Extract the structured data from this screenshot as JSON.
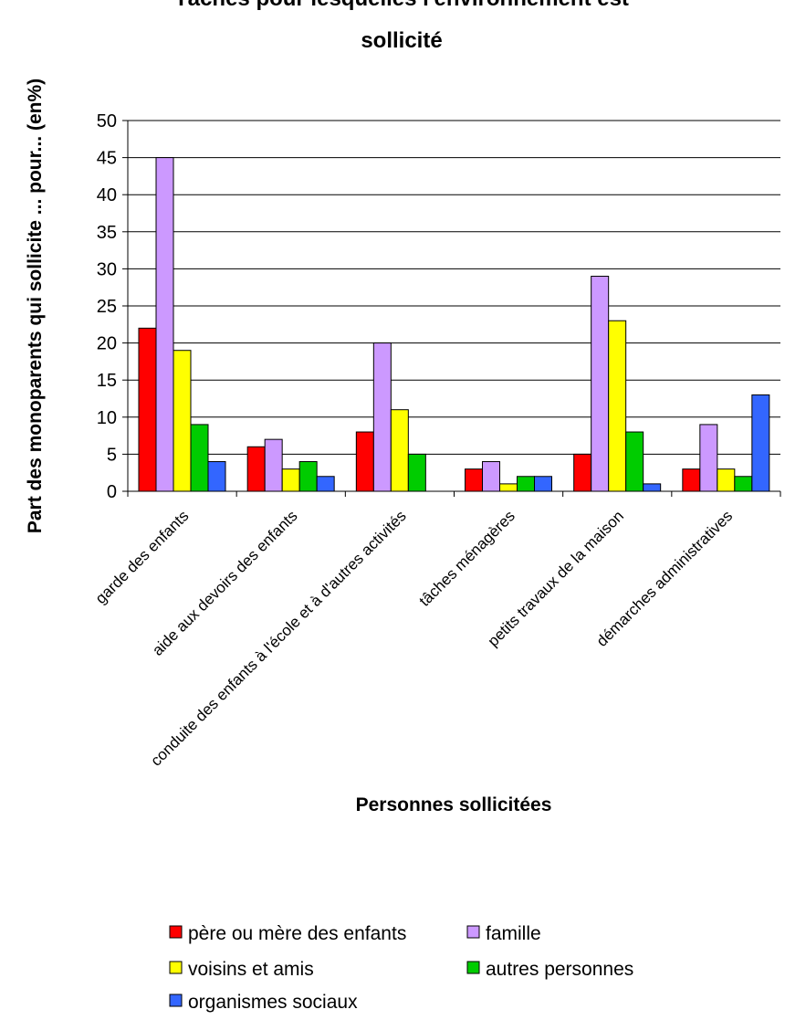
{
  "chart_data": {
    "type": "bar",
    "title": "Tâches pour lesquelles l'environnement est sollicité",
    "title_lines": [
      "Tâches pour lesquelles l'environnement est",
      "sollicité"
    ],
    "xlabel": "Personnes sollicitées",
    "ylabel": "Part des monoparents qui sollicite ... pour... (en%)",
    "ylim": [
      0,
      50
    ],
    "yticks": [
      0,
      5,
      10,
      15,
      20,
      25,
      30,
      35,
      40,
      45,
      50
    ],
    "grid": true,
    "legend_position": "bottom",
    "categories": [
      "garde des enfants",
      "aide aux devoirs des enfants",
      "conduite des enfants à l'école et à d'autres activités",
      "tâches ménagères",
      "petits travaux de la maison",
      "démarches administratives"
    ],
    "series": [
      {
        "name": "père ou mère des enfants",
        "color": "#ff0000",
        "values": [
          22,
          6,
          8,
          3,
          5,
          3
        ]
      },
      {
        "name": "famille",
        "color": "#cc99ff",
        "values": [
          45,
          7,
          20,
          4,
          29,
          9
        ]
      },
      {
        "name": "voisins et amis",
        "color": "#ffff00",
        "values": [
          19,
          3,
          11,
          1,
          23,
          3
        ]
      },
      {
        "name": "autres personnes",
        "color": "#00cc00",
        "values": [
          9,
          4,
          5,
          2,
          8,
          2
        ]
      },
      {
        "name": "organismes sociaux",
        "color": "#3366ff",
        "values": [
          4,
          2,
          0,
          2,
          1,
          13
        ]
      }
    ]
  }
}
